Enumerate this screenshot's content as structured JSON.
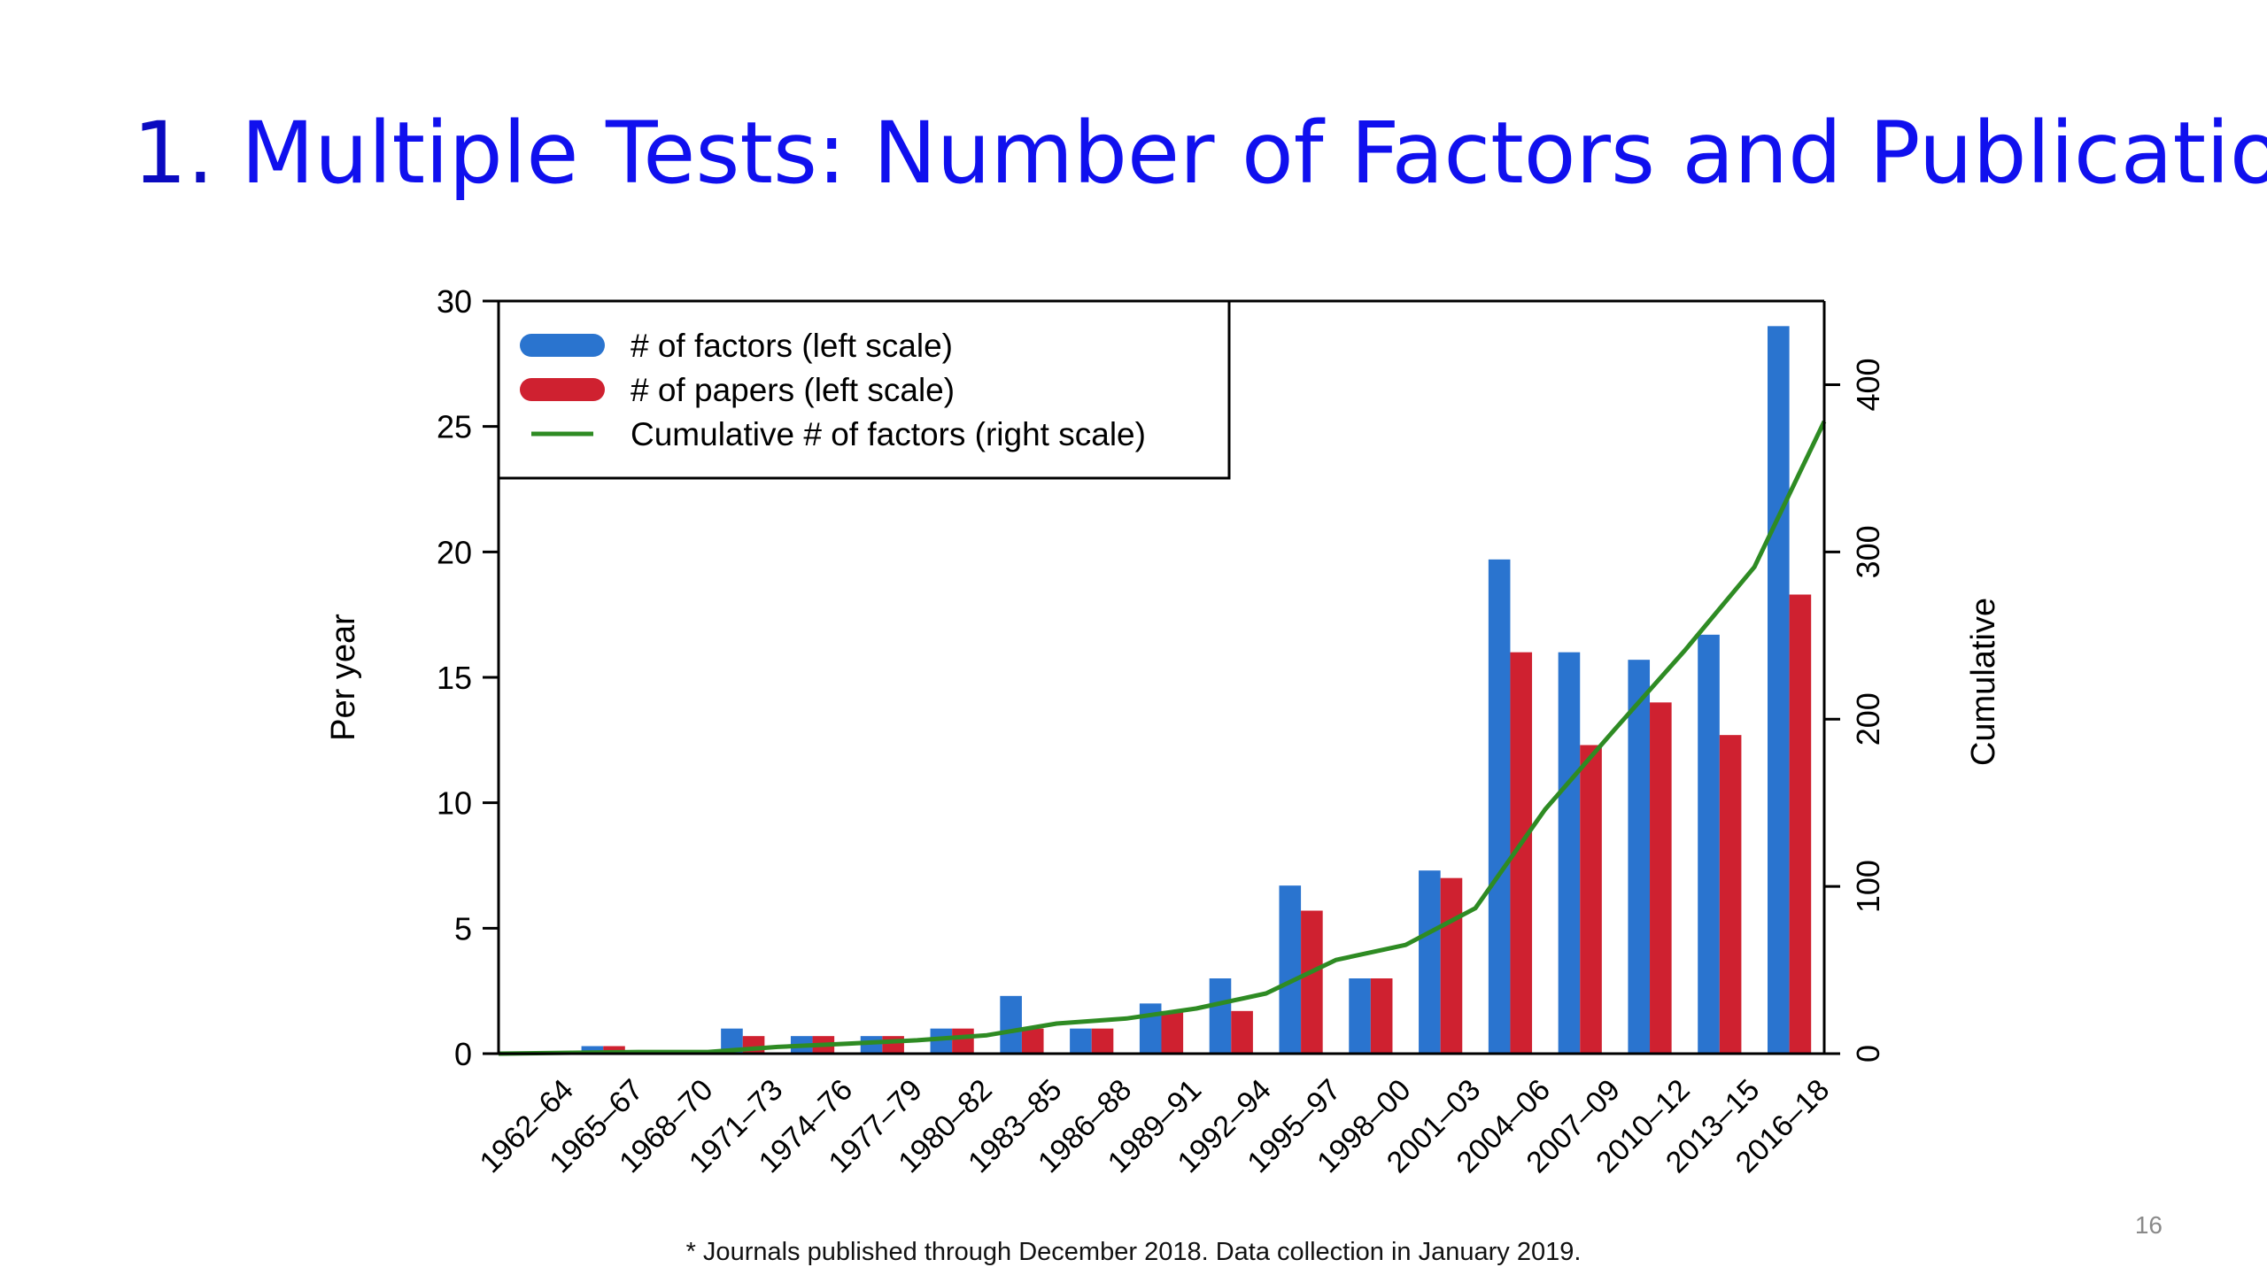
{
  "slide": {
    "title_number": "1.",
    "title_text": " Multiple Tests: Number of Factors and Publications",
    "page_number": "16",
    "footnote": "* Journals published through December 2018. Data collection in January 2019."
  },
  "colors": {
    "factors": "#2a74cf",
    "papers": "#cf2130",
    "cumulative": "#2e8b23"
  },
  "chart_data": {
    "type": "bar",
    "ylabel": "Per year",
    "y2label": "Cumulative",
    "ylim": [
      0,
      30
    ],
    "y2lim": [
      0,
      450
    ],
    "yticks": [
      0,
      5,
      10,
      15,
      20,
      25,
      30
    ],
    "y2ticks": [
      0,
      100,
      200,
      300,
      400
    ],
    "legend_position": "top-left",
    "categories": [
      "1962–64",
      "1965–67",
      "1968–70",
      "1971–73",
      "1974–76",
      "1977–79",
      "1980–82",
      "1983–85",
      "1986–88",
      "1989–91",
      "1992–94",
      "1995–97",
      "1998–00",
      "2001–03",
      "2004–06",
      "2007–09",
      "2010–12",
      "2013–15",
      "2016–18"
    ],
    "series": [
      {
        "name": "# of factors (left scale)",
        "kind": "bar",
        "axis": "left",
        "values": [
          0,
          0.3,
          0,
          1.0,
          0.7,
          0.7,
          1.0,
          2.3,
          1.0,
          2.0,
          3.0,
          6.7,
          3.0,
          7.3,
          19.7,
          16.0,
          15.7,
          16.7,
          29.0
        ]
      },
      {
        "name": "# of papers (left scale)",
        "kind": "bar",
        "axis": "left",
        "values": [
          0,
          0.3,
          0,
          0.7,
          0.7,
          0.7,
          1.0,
          1.0,
          1.0,
          1.7,
          1.7,
          5.7,
          3.0,
          7.0,
          16.0,
          12.3,
          14.0,
          12.7,
          18.3
        ]
      },
      {
        "name": "Cumulative # of factors (right scale)",
        "kind": "line",
        "axis": "right",
        "values": [
          0,
          1,
          1,
          4,
          6,
          8,
          11,
          18,
          21,
          27,
          36,
          56,
          65,
          87,
          146,
          194,
          241,
          291,
          378
        ]
      }
    ]
  }
}
